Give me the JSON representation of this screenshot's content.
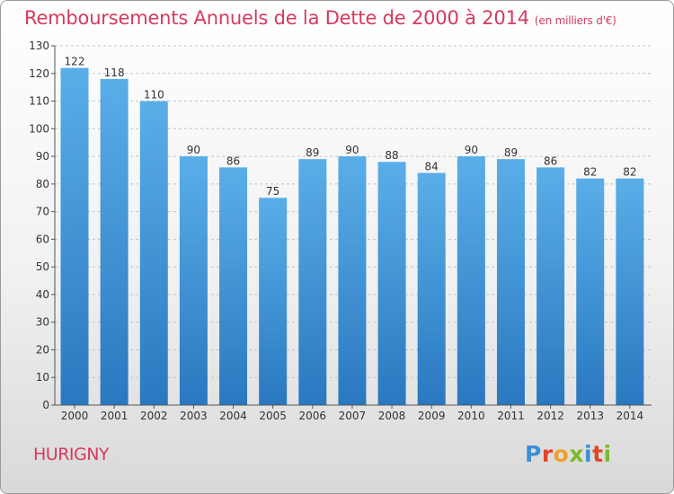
{
  "header": {
    "title": "Remboursements Annuels de la Dette de 2000 à 2014",
    "unit": "(en milliers d'€)"
  },
  "footer": {
    "place": "HURIGNY",
    "logo": "Proxiti"
  },
  "colors": {
    "title": "#d63a5e",
    "bar_top": "#5aaee8",
    "bar_bottom": "#2a78c0"
  },
  "chart_data": {
    "type": "bar",
    "categories": [
      "2000",
      "2001",
      "2002",
      "2003",
      "2004",
      "2005",
      "2006",
      "2007",
      "2008",
      "2009",
      "2010",
      "2011",
      "2012",
      "2013",
      "2014"
    ],
    "values": [
      122,
      118,
      110,
      90,
      86,
      75,
      89,
      90,
      88,
      84,
      90,
      89,
      86,
      82,
      82
    ],
    "ylim": [
      0,
      130
    ],
    "yticks": [
      0,
      10,
      20,
      30,
      40,
      50,
      60,
      70,
      80,
      90,
      100,
      110,
      120,
      130
    ],
    "grid": true,
    "data_labels": true
  }
}
